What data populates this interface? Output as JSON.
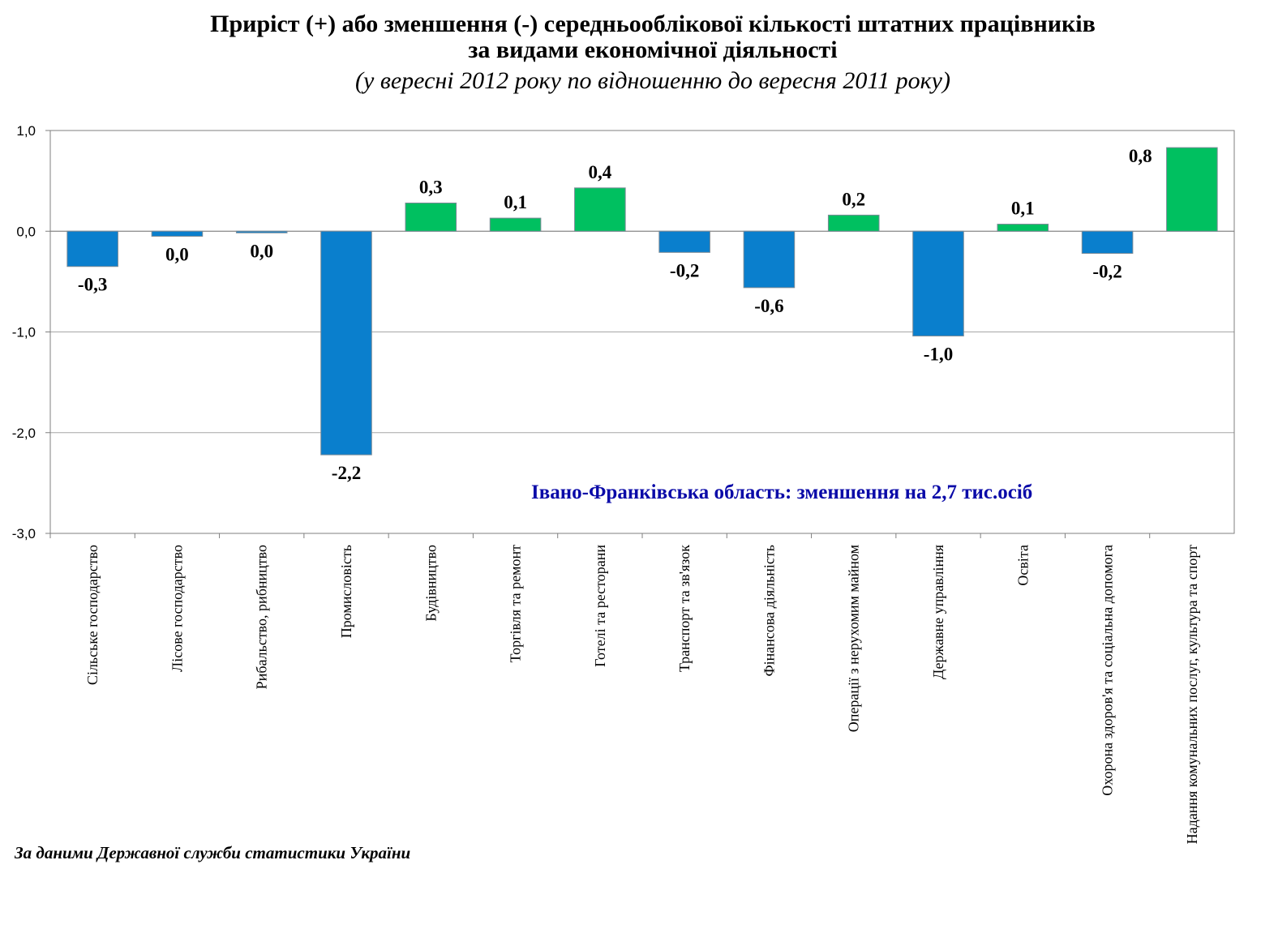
{
  "chart_data": {
    "type": "bar",
    "title_line1": "Приріст (+) або зменшення (-) середньооблікової кількості штатних працівників",
    "title_line2": "за видами економічної діяльності",
    "subtitle": "(у вересні 2012 року по відношенню до вересня 2011 року)",
    "categories": [
      "Сільське господарство",
      "Лісове господарство",
      "Рибальство, рибництво",
      "Промисловість",
      "Будівництво",
      "Торгівля та ремонт",
      "Готелі та ресторани",
      "Транспорт та зв'язок",
      "Фінансова діяльність",
      "Операції з нерухомим майном",
      "Державне управління",
      "Освіта",
      "Охорона здоров'я та соціальна допомога",
      "Надання комунальних послуг, культура та спорт"
    ],
    "values": [
      -0.35,
      -0.05,
      -0.01,
      -2.22,
      0.28,
      0.13,
      0.43,
      -0.21,
      -0.56,
      0.16,
      -1.04,
      0.07,
      -0.22,
      0.83
    ],
    "data_labels": [
      "-0,3",
      "0,0",
      "0,0",
      "-2,2",
      "0,3",
      "0,1",
      "0,4",
      "-0,2",
      "-0,6",
      "0,2",
      "-1,0",
      "0,1",
      "-0,2",
      "0,8"
    ],
    "ylim": [
      -3.0,
      1.0
    ],
    "yticks": [
      1.0,
      0.0,
      -1.0,
      -2.0,
      -3.0
    ],
    "ytick_labels": [
      "1,0",
      "0,0",
      "-1,0",
      "-2,0",
      "-3,0"
    ],
    "grid": true,
    "legend": "none",
    "colors": {
      "negative": "#0a7fcd",
      "positive": "#00c060"
    },
    "annotation": "Івано-Франківська область: зменшення на 2,7 тис.осіб"
  },
  "source_note": "За даними Державної служби статистики України"
}
